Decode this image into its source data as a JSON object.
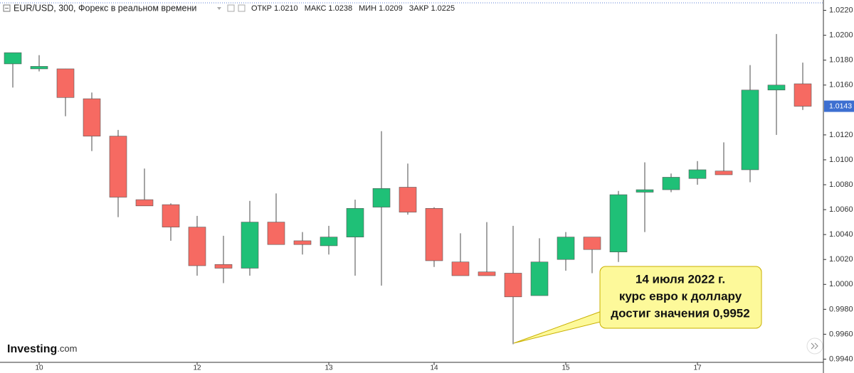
{
  "chart_data": {
    "type": "candlestick",
    "title": "EUR/USD, 300, Форекс в реальном времени",
    "ohlc_legend": [
      {
        "label": "ОТКР",
        "value": "1.0210"
      },
      {
        "label": "МАКС",
        "value": "1.0238"
      },
      {
        "label": "МИН",
        "value": "1.0209"
      },
      {
        "label": "ЗАКР",
        "value": "1.0225"
      }
    ],
    "categories": [
      null,
      "10",
      null,
      null,
      null,
      null,
      null,
      "12",
      null,
      null,
      null,
      null,
      "13",
      null,
      null,
      null,
      "14",
      null,
      null,
      null,
      null,
      "15",
      null,
      null,
      null,
      null,
      "17",
      null,
      null,
      null,
      null
    ],
    "open": [
      1.0177,
      1.0173,
      1.0173,
      1.0149,
      1.0119,
      1.0068,
      1.0064,
      1.0046,
      1.0016,
      1.0013,
      1.005,
      1.0035,
      1.0031,
      1.0038,
      1.0062,
      1.0078,
      1.0061,
      1.0018,
      1.001,
      1.0009,
      0.9991,
      1.002,
      1.0038,
      1.0026,
      1.0074,
      1.0076,
      1.0085,
      1.0091,
      1.0092,
      1.0156,
      1.0161
    ],
    "high": [
      1.0186,
      1.0184,
      1.0173,
      1.0154,
      1.0124,
      1.0093,
      1.0065,
      1.0055,
      1.0039,
      1.0067,
      1.0073,
      1.0042,
      1.0047,
      1.0068,
      1.0123,
      1.0097,
      1.0062,
      1.0041,
      1.005,
      1.0047,
      1.0037,
      1.0042,
      1.0038,
      1.0075,
      1.0098,
      1.0089,
      1.0099,
      1.0114,
      1.0176,
      1.0201,
      1.0178
    ],
    "low": [
      1.0158,
      1.0171,
      1.0135,
      1.0107,
      1.0054,
      1.0063,
      1.0035,
      1.0007,
      1.0001,
      1.0007,
      1.0032,
      1.0024,
      1.0024,
      1.0007,
      0.9999,
      1.0056,
      1.0014,
      1.0007,
      1.0007,
      0.9952,
      0.9991,
      1.0011,
      1.0009,
      1.0018,
      1.0042,
      1.0074,
      1.008,
      1.0088,
      1.0082,
      1.012,
      1.014
    ],
    "close": [
      1.0186,
      1.0175,
      1.015,
      1.0119,
      1.007,
      1.0063,
      1.0046,
      1.0015,
      1.0013,
      1.005,
      1.0032,
      1.0032,
      1.0038,
      1.0061,
      1.0077,
      1.0058,
      1.0019,
      1.0007,
      1.0007,
      0.999,
      1.0018,
      1.0038,
      1.0028,
      1.0072,
      1.0076,
      1.0086,
      1.0092,
      1.0088,
      1.0156,
      1.016,
      1.0143
    ],
    "up_color": "#1fc077",
    "down_color": "#f66a62",
    "ylim": [
      0.9938,
      1.0226
    ],
    "yticks": [
      {
        "value": 0.994,
        "label": "0.9940"
      },
      {
        "value": 0.996,
        "label": "0.9960"
      },
      {
        "value": 0.998,
        "label": "0.9980"
      },
      {
        "value": 1.0,
        "label": "1.0000"
      },
      {
        "value": 1.002,
        "label": "1.0020"
      },
      {
        "value": 1.004,
        "label": "1.0040"
      },
      {
        "value": 1.006,
        "label": "1.0060"
      },
      {
        "value": 1.008,
        "label": "1.0080"
      },
      {
        "value": 1.01,
        "label": "1.0100"
      },
      {
        "value": 1.012,
        "label": "1.0120"
      },
      {
        "value": 1.016,
        "label": "1.0160"
      },
      {
        "value": 1.018,
        "label": "1.0180"
      },
      {
        "value": 1.02,
        "label": "1.0200"
      },
      {
        "value": 1.022,
        "label": "1.0220"
      }
    ],
    "last_price": 1.0143,
    "annotation": [
      "14 июля 2022 г.",
      "курс евро к доллару",
      "достиг значения 0,9952"
    ],
    "logo": {
      "brand": "Investing",
      "suffix": ".com"
    }
  }
}
